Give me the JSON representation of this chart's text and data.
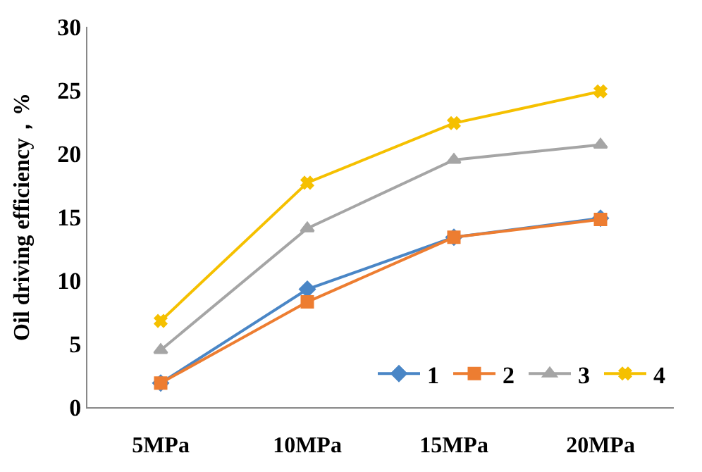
{
  "chart_data": {
    "type": "line",
    "ylabel": "Oil driving efficiency，%",
    "categories": [
      "5MPa",
      "10MPa",
      "15MPa",
      "20MPa"
    ],
    "series": [
      {
        "name": "1",
        "color": "#4a86c6",
        "values": [
          1.9,
          9.3,
          13.4,
          14.9
        ],
        "marker": "diamond"
      },
      {
        "name": "2",
        "color": "#ed7d31",
        "values": [
          1.9,
          8.3,
          13.4,
          14.8
        ],
        "marker": "square"
      },
      {
        "name": "3",
        "color": "#a5a5a5",
        "values": [
          4.5,
          14.1,
          19.5,
          20.7
        ],
        "marker": "triangle"
      },
      {
        "name": "4",
        "color": "#f5c000",
        "values": [
          6.8,
          17.7,
          22.4,
          24.9
        ],
        "marker": "cross"
      }
    ],
    "ylim": [
      0,
      30
    ],
    "yticks": [
      0,
      5,
      10,
      15,
      20,
      25,
      30
    ],
    "legend": "bottom right"
  }
}
